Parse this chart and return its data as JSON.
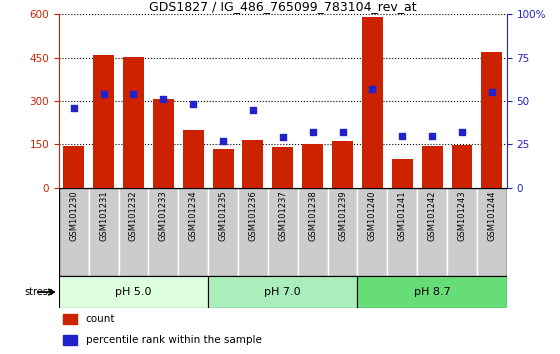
{
  "title": "GDS1827 / IG_486_765099_783104_rev_at",
  "samples": [
    "GSM101230",
    "GSM101231",
    "GSM101232",
    "GSM101233",
    "GSM101234",
    "GSM101235",
    "GSM101236",
    "GSM101237",
    "GSM101238",
    "GSM101239",
    "GSM101240",
    "GSM101241",
    "GSM101242",
    "GSM101243",
    "GSM101244"
  ],
  "counts": [
    145,
    460,
    452,
    308,
    200,
    135,
    165,
    140,
    152,
    162,
    590,
    100,
    145,
    148,
    470
  ],
  "percentiles": [
    46,
    54,
    54,
    51,
    48,
    27,
    45,
    29,
    32,
    32,
    57,
    30,
    30,
    32,
    55
  ],
  "bar_color": "#CC2200",
  "dot_color": "#2222CC",
  "ylim_left": [
    0,
    600
  ],
  "ylim_right": [
    0,
    100
  ],
  "yticks_left": [
    0,
    150,
    300,
    450,
    600
  ],
  "yticks_right": [
    0,
    25,
    50,
    75,
    100
  ],
  "groups": [
    {
      "label": "pH 5.0",
      "start": 0,
      "end": 5,
      "color": "#DDFFDD"
    },
    {
      "label": "pH 7.0",
      "start": 5,
      "end": 10,
      "color": "#AAEEBB"
    },
    {
      "label": "pH 8.7",
      "start": 10,
      "end": 15,
      "color": "#66DD77"
    }
  ],
  "legend_items": [
    {
      "label": "count",
      "color": "#CC2200"
    },
    {
      "label": "percentile rank within the sample",
      "color": "#2222CC"
    }
  ],
  "ticklabel_bg": "#CCCCCC",
  "right_yaxis_color": "#2222CC",
  "left_yaxis_color": "#CC2200"
}
